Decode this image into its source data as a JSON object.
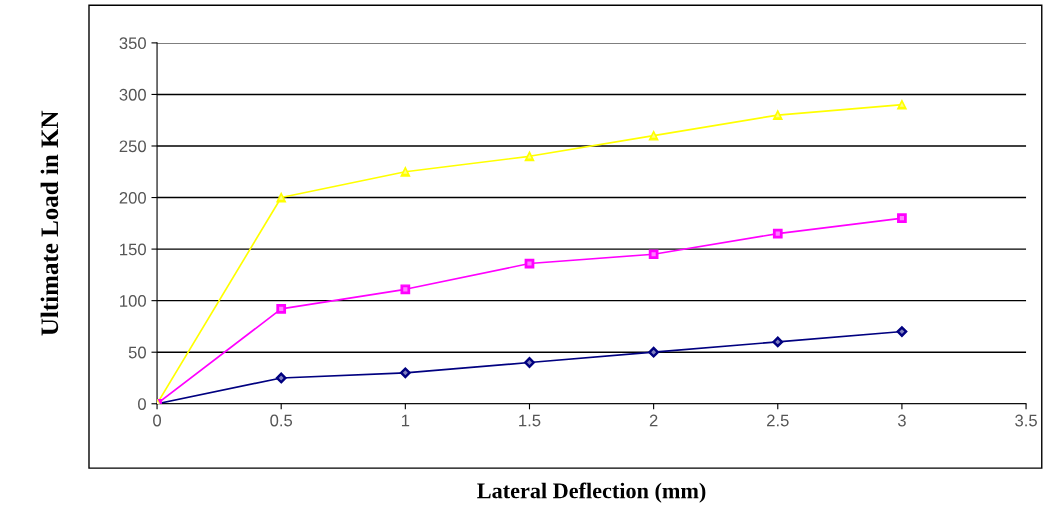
{
  "chart_data": {
    "type": "line",
    "xlabel": "Lateral Deflection (mm)",
    "ylabel": "Ultimate Load in KN",
    "x": [
      0,
      0.5,
      1,
      1.5,
      2,
      2.5,
      3
    ],
    "series": [
      {
        "color": "#000080",
        "marker": "diamond",
        "values": [
          0,
          25,
          30,
          40,
          50,
          60,
          70
        ]
      },
      {
        "color": "#ff00ff",
        "marker": "square",
        "values": [
          0,
          92,
          111,
          136,
          145,
          165,
          180
        ]
      },
      {
        "color": "#ffff00",
        "marker": "triangle",
        "values": [
          0,
          200,
          225,
          240,
          260,
          280,
          290
        ]
      }
    ],
    "xlim": [
      0,
      3.5
    ],
    "xticks": [
      0,
      0.5,
      1,
      1.5,
      2,
      2.5,
      3,
      3.5
    ],
    "ylim": [
      0,
      350
    ],
    "yticks": [
      0,
      50,
      100,
      150,
      200,
      250,
      300,
      350
    ],
    "grid": "y"
  }
}
